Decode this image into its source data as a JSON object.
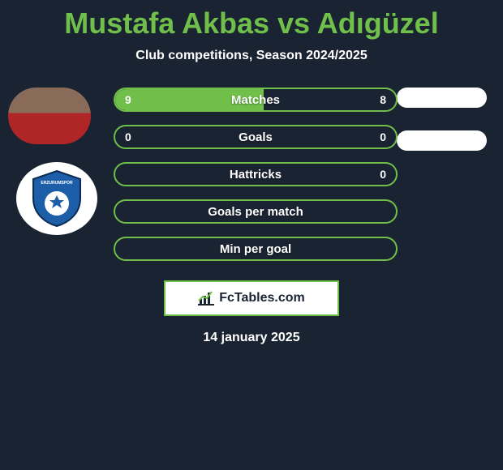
{
  "header": {
    "title": "Mustafa Akbas vs Adıgüzel",
    "subtitle": "Club competitions, Season 2024/2025"
  },
  "colors": {
    "background": "#1a2332",
    "accent": "#6fbf4a",
    "text": "#ffffff",
    "pill": "#ffffff"
  },
  "bars": [
    {
      "label": "Matches",
      "left": "9",
      "right": "8",
      "left_pct": 53,
      "right_pct": 0
    },
    {
      "label": "Goals",
      "left": "0",
      "right": "0",
      "left_pct": 0,
      "right_pct": 0
    },
    {
      "label": "Hattricks",
      "left": "",
      "right": "0",
      "left_pct": 0,
      "right_pct": 0
    },
    {
      "label": "Goals per match",
      "left": "",
      "right": "",
      "left_pct": 0,
      "right_pct": 0
    },
    {
      "label": "Min per goal",
      "left": "",
      "right": "",
      "left_pct": 0,
      "right_pct": 0
    }
  ],
  "avatars": {
    "player_alt": "player-photo",
    "club_alt": "erzurumspor-logo",
    "club_colors": {
      "shield": "#1d5ea8",
      "ball": "#ffffff",
      "trim": "#0b2b52"
    }
  },
  "right_pills": {
    "count": 2
  },
  "brand": {
    "text": "FcTables.com"
  },
  "date": "14 january 2025"
}
